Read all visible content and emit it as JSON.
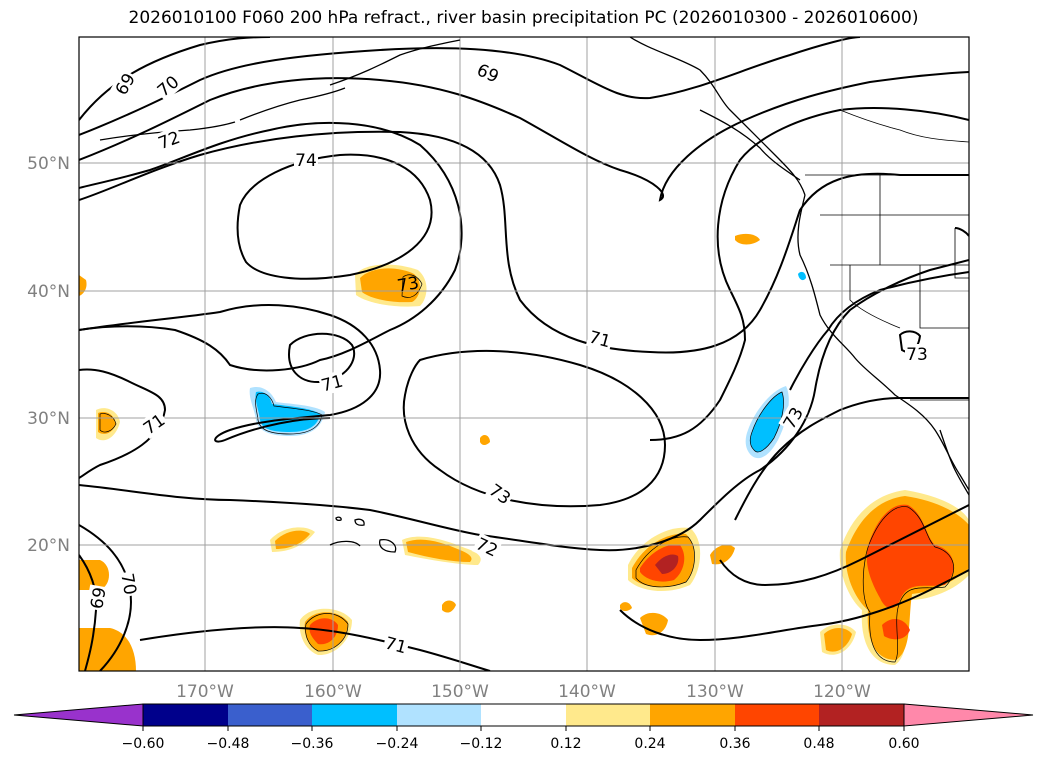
{
  "title": "2026010100 F060 200 hPa refract., river basin precipitation PC (2026010300 - 2026010600)",
  "map": {
    "lat_labels": [
      "50°N",
      "40°N",
      "30°N",
      "20°N"
    ],
    "lon_labels": [
      "170°W",
      "160°W",
      "150°W",
      "140°W",
      "130°W",
      "120°W"
    ],
    "contour_labels": [
      "69",
      "70",
      "72",
      "74",
      "69",
      "73",
      "71",
      "71",
      "71",
      "73",
      "73",
      "73",
      "72",
      "71",
      "70",
      "69"
    ]
  },
  "colorbar": {
    "tick_labels": [
      "−0.60",
      "−0.48",
      "−0.36",
      "−0.24",
      "−0.12",
      "0.12",
      "0.24",
      "0.36",
      "0.48",
      "0.60"
    ],
    "colors": [
      "#9932CC",
      "#00008B",
      "#3A5FCD",
      "#00BFFF",
      "#B0E2FF",
      "#FFFFFF",
      "#FFE98C",
      "#FFA500",
      "#FF4500",
      "#B22222",
      "#FF88AA"
    ]
  }
}
